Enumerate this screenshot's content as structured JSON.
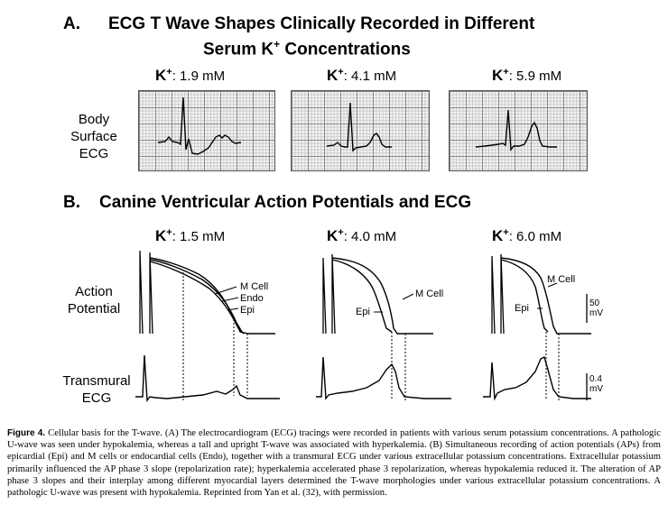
{
  "panel_a": {
    "letter": "A.",
    "title_line1": "ECG T Wave Shapes Clinically Recorded in Different",
    "title_line2_pre": "Serum K",
    "title_line2_sup": "+",
    "title_line2_post": " Concentrations",
    "k_symbol": "K",
    "k_sup": "+",
    "columns": [
      ": 1.9 mM",
      ": 4.1 mM",
      ": 5.9 mM"
    ],
    "row_label": [
      "Body",
      "Surface",
      "ECG"
    ]
  },
  "panel_b": {
    "letter": "B.",
    "title": "Canine Ventricular Action Potentials and ECG",
    "k_symbol": "K",
    "k_sup": "+",
    "columns": [
      ": 1.5 mM",
      ": 4.0 mM",
      ": 6.0 mM"
    ],
    "row1_label": [
      "Action",
      "Potential"
    ],
    "row2_label": [
      "Transmural",
      "ECG"
    ],
    "curve_labels_1": [
      "M Cell",
      "Endo",
      "Epi"
    ],
    "curve_labels_2": [
      "Epi",
      "M Cell"
    ],
    "curve_labels_3": [
      "M Cell",
      "Epi"
    ],
    "scale_ap": [
      "50",
      "mV"
    ],
    "scale_ecg": [
      "0.4",
      "mV"
    ]
  },
  "caption": {
    "figure_label": "Figure 4.",
    "text": "Cellular basis for the T-wave. (A) The electrocardiogram (ECG) tracings were recorded in patients with various serum potassium concentrations. A pathologic U-wave was seen under hypokalemia, whereas a tall and upright T-wave was associated with hyperkalemia. (B) Simultaneous recording of action potentials (APs) from epicardial (Epi) and M cells or endocardial cells (Endo), together with a transmural ECG under various extracellular potassium concentrations. Extracellular potassium primarily influenced the AP phase 3 slope (repolarization rate); hyperkalemia accelerated phase 3 repolarization, whereas hypokalemia reduced it. The alteration of AP phase 3 slopes and their interplay among different myocardial layers determined the T-wave morphologies under various extracellular potassium concentrations. A pathologic U-wave was present with hypokalemia. Reprinted from Yan et al. (32), with permission."
  }
}
